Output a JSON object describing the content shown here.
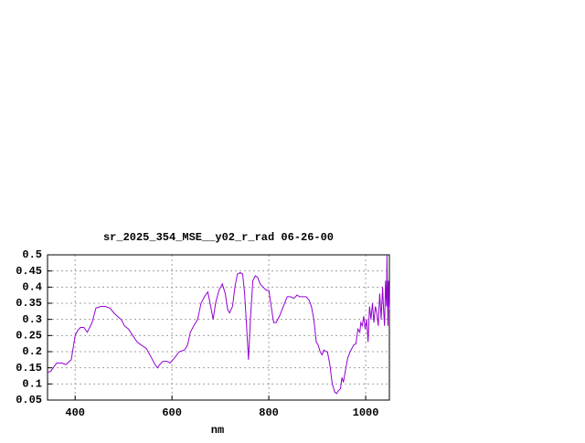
{
  "chart_data": {
    "type": "line",
    "title": "sr_2025_354_MSE__y02_r_rad 06-26-00",
    "x_label": "nm",
    "xlim": [
      343,
      1049
    ],
    "ylim": [
      0.05,
      0.5
    ],
    "xticks": [
      400,
      600,
      800,
      1000
    ],
    "yticks": [
      0.05,
      0.1,
      0.15,
      0.2,
      0.25,
      0.3,
      0.35,
      0.4,
      0.45,
      0.5
    ],
    "grid": true,
    "series": [
      {
        "color": "#9400d3",
        "x": [
          343,
          350,
          362,
          372,
          381,
          392,
          400,
          405,
          411,
          418,
          425,
          435,
          443,
          453,
          462,
          472,
          480,
          487,
          495,
          502,
          510,
          519,
          528,
          537,
          547,
          558,
          565,
          570,
          575,
          581,
          590,
          596,
          605,
          615,
          626,
          632,
          638,
          645,
          653,
          660,
          667,
          674,
          680,
          685,
          690,
          697,
          704,
          710,
          715,
          719,
          725,
          730,
          735,
          741,
          746,
          750,
          754,
          758,
          762,
          767,
          772,
          777,
          782,
          788,
          795,
          800,
          806,
          810,
          815,
          822,
          830,
          838,
          845,
          852,
          858,
          864,
          870,
          877,
          883,
          888,
          893,
          898,
          902,
          906,
          910,
          914,
          918,
          921,
          926,
          931,
          936,
          940,
          944,
          948,
          951,
          954,
          958,
          963,
          968,
          975,
          980,
          984,
          988,
          990,
          993,
          996,
          999,
          1002,
          1005,
          1008,
          1011,
          1014,
          1017,
          1020,
          1023,
          1026,
          1029,
          1032,
          1035,
          1037,
          1039,
          1041,
          1043,
          1044,
          1045,
          1046,
          1047,
          1048,
          1049
        ],
        "values": [
          0.135,
          0.14,
          0.165,
          0.165,
          0.16,
          0.175,
          0.25,
          0.265,
          0.275,
          0.275,
          0.26,
          0.29,
          0.335,
          0.34,
          0.34,
          0.335,
          0.32,
          0.31,
          0.3,
          0.28,
          0.27,
          0.25,
          0.23,
          0.22,
          0.21,
          0.18,
          0.16,
          0.15,
          0.16,
          0.17,
          0.17,
          0.165,
          0.18,
          0.2,
          0.205,
          0.22,
          0.26,
          0.28,
          0.3,
          0.35,
          0.37,
          0.385,
          0.34,
          0.3,
          0.35,
          0.39,
          0.41,
          0.38,
          0.33,
          0.32,
          0.34,
          0.4,
          0.44,
          0.445,
          0.44,
          0.38,
          0.28,
          0.175,
          0.3,
          0.42,
          0.435,
          0.43,
          0.41,
          0.4,
          0.39,
          0.39,
          0.33,
          0.29,
          0.29,
          0.31,
          0.34,
          0.37,
          0.37,
          0.365,
          0.375,
          0.37,
          0.37,
          0.37,
          0.36,
          0.34,
          0.3,
          0.23,
          0.22,
          0.2,
          0.19,
          0.205,
          0.2,
          0.2,
          0.16,
          0.1,
          0.075,
          0.07,
          0.08,
          0.085,
          0.12,
          0.105,
          0.14,
          0.18,
          0.2,
          0.22,
          0.225,
          0.27,
          0.26,
          0.29,
          0.28,
          0.31,
          0.27,
          0.3,
          0.23,
          0.34,
          0.3,
          0.35,
          0.29,
          0.34,
          0.32,
          0.28,
          0.38,
          0.3,
          0.4,
          0.33,
          0.28,
          0.42,
          0.34,
          0.5,
          0.38,
          0.28,
          0.42,
          0.36,
          0.33
        ]
      }
    ]
  }
}
